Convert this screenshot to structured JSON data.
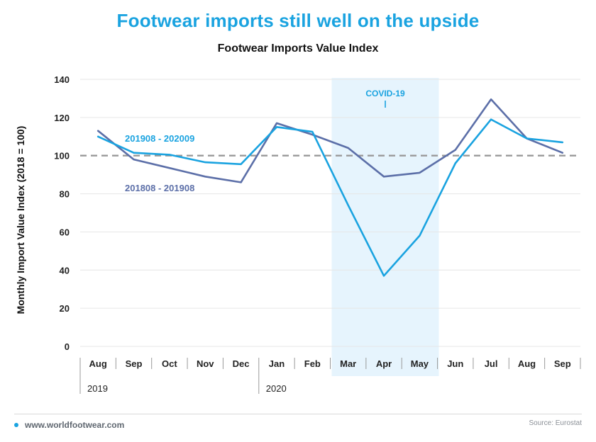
{
  "headline": "Footwear imports still well on the upside",
  "footer": {
    "site": "www.worldfootwear.com",
    "source": "Source: Eurostat"
  },
  "colors": {
    "accent": "#1aa3e0",
    "series_2019": "#5c6fa8",
    "series_2020": "#1aa3e0",
    "covid_band": "#e6f4fd",
    "reference_line": "#999999"
  },
  "chart_data": {
    "type": "line",
    "title": "Footwear Imports Value Index",
    "ylabel": "Monthly Import Value Index  (2018 = 100)",
    "xlabel": "",
    "categories": [
      "Aug",
      "Sep",
      "Oct",
      "Nov",
      "Dec",
      "Jan",
      "Feb",
      "Mar",
      "Apr",
      "May",
      "Jun",
      "Jul",
      "Aug",
      "Sep"
    ],
    "year_labels": [
      {
        "label": "2019",
        "start_index": 0
      },
      {
        "label": "2020",
        "start_index": 5
      }
    ],
    "ylim": [
      0,
      140
    ],
    "yticks": [
      0,
      20,
      40,
      60,
      80,
      100,
      120,
      140
    ],
    "reference_line": 100,
    "grid": true,
    "shaded_region": {
      "label": "COVID-19",
      "from": "Mar",
      "to": "May"
    },
    "series": [
      {
        "name": "201808 - 201908",
        "color": "#5c6fa8",
        "values": [
          113,
          98,
          93.5,
          89,
          86,
          117,
          111,
          104,
          89,
          91,
          103,
          129.5,
          109,
          101.5
        ]
      },
      {
        "name": "201908 - 202009",
        "color": "#1aa3e0",
        "values": [
          110,
          101.5,
          100.5,
          96.5,
          95.5,
          115,
          112.5,
          74,
          37,
          58,
          96,
          119,
          109,
          107
        ]
      }
    ]
  }
}
